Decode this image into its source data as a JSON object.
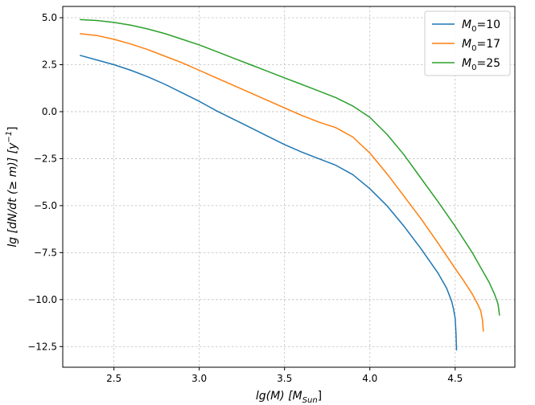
{
  "chart_data": {
    "type": "line",
    "xlabel": "lg(M)  [M",
    "xlabel_sub": "Sun",
    "xlabel_end": "]",
    "ylabel": "lg [dN/dt (≥ m)]  [y",
    "ylabel_sup": "−1",
    "ylabel_end": "]",
    "xlim": [
      2.2,
      4.85
    ],
    "ylim": [
      -13.6,
      5.6
    ],
    "xticks": [
      2.5,
      3.0,
      3.5,
      4.0,
      4.5
    ],
    "xtick_labels": [
      "2.5",
      "3.0",
      "3.5",
      "4.0",
      "4.5"
    ],
    "yticks": [
      5.0,
      2.5,
      0.0,
      -2.5,
      -5.0,
      -7.5,
      -10.0,
      -12.5
    ],
    "ytick_labels": [
      "5.0",
      "2.5",
      "0.0",
      "−2.5",
      "−5.0",
      "−7.5",
      "−10.0",
      "−12.5"
    ],
    "grid": true,
    "legend_position": "top-right",
    "series": [
      {
        "name": "M",
        "name_sub": "0",
        "name_end": "=10",
        "color": "#1f77b4",
        "x": [
          2.3,
          2.4,
          2.5,
          2.6,
          2.7,
          2.8,
          2.9,
          3.0,
          3.1,
          3.2,
          3.3,
          3.4,
          3.5,
          3.6,
          3.7,
          3.8,
          3.9,
          4.0,
          4.1,
          4.2,
          4.3,
          4.4,
          4.45,
          4.48,
          4.49,
          4.5,
          4.505,
          4.508
        ],
        "y": [
          3.0,
          2.75,
          2.5,
          2.2,
          1.85,
          1.45,
          1.0,
          0.55,
          0.05,
          -0.4,
          -0.85,
          -1.3,
          -1.75,
          -2.15,
          -2.5,
          -2.85,
          -3.35,
          -4.1,
          -5.0,
          -6.1,
          -7.3,
          -8.6,
          -9.4,
          -10.1,
          -10.5,
          -11.0,
          -11.8,
          -12.7
        ]
      },
      {
        "name": "M",
        "name_sub": "0",
        "name_end": "=17",
        "color": "#ff7f0e",
        "x": [
          2.3,
          2.4,
          2.5,
          2.6,
          2.7,
          2.8,
          2.9,
          3.0,
          3.1,
          3.2,
          3.3,
          3.4,
          3.5,
          3.6,
          3.7,
          3.8,
          3.9,
          4.0,
          4.1,
          4.2,
          4.3,
          4.4,
          4.5,
          4.55,
          4.6,
          4.63,
          4.65,
          4.66,
          4.665
        ],
        "y": [
          4.15,
          4.05,
          3.85,
          3.6,
          3.3,
          2.95,
          2.6,
          2.2,
          1.8,
          1.4,
          1.0,
          0.6,
          0.2,
          -0.2,
          -0.55,
          -0.85,
          -1.35,
          -2.2,
          -3.3,
          -4.5,
          -5.7,
          -7.0,
          -8.35,
          -9.0,
          -9.7,
          -10.2,
          -10.6,
          -11.1,
          -11.7
        ]
      },
      {
        "name": "M",
        "name_sub": "0",
        "name_end": "=25",
        "color": "#2ca02c",
        "x": [
          2.3,
          2.4,
          2.5,
          2.6,
          2.7,
          2.8,
          2.9,
          3.0,
          3.1,
          3.2,
          3.3,
          3.4,
          3.5,
          3.6,
          3.7,
          3.8,
          3.9,
          4.0,
          4.1,
          4.2,
          4.3,
          4.4,
          4.5,
          4.6,
          4.65,
          4.7,
          4.73,
          4.75,
          4.755,
          4.76
        ],
        "y": [
          4.9,
          4.85,
          4.75,
          4.6,
          4.4,
          4.15,
          3.85,
          3.55,
          3.2,
          2.85,
          2.5,
          2.15,
          1.8,
          1.45,
          1.1,
          0.75,
          0.3,
          -0.3,
          -1.2,
          -2.3,
          -3.55,
          -4.8,
          -6.1,
          -7.5,
          -8.3,
          -9.1,
          -9.7,
          -10.2,
          -10.5,
          -10.85
        ]
      }
    ]
  }
}
